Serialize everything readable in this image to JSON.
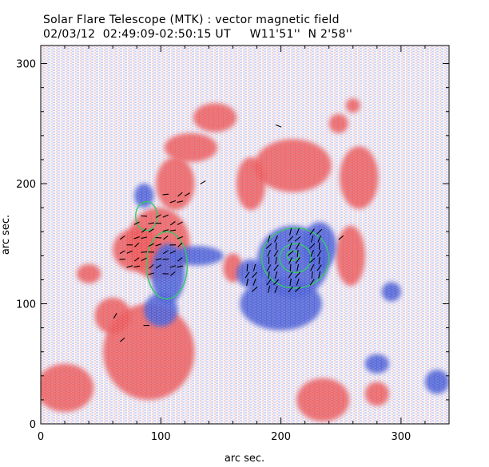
{
  "title": {
    "line1": "Solar Flare Telescope (MTK) : vector magnetic field",
    "line2": "02/03/12  02:49:09-02:50:15 UT     W11'51''  N 2'58''"
  },
  "chart_data": {
    "type": "heatmap",
    "description_of_marks": "longitudinal magnetogram (red = positive, blue = negative) with transverse field vectors (black dashes) and green contours",
    "xlabel": "arc sec.",
    "ylabel": "arc sec.",
    "xlim": [
      0,
      340
    ],
    "ylim": [
      0,
      315
    ],
    "xticks": [
      0,
      100,
      200,
      300
    ],
    "yticks": [
      0,
      100,
      200,
      300
    ],
    "x_tick_labels": [
      "0",
      "100",
      "200",
      "300"
    ],
    "y_tick_labels": [
      "0",
      "100",
      "200",
      "300"
    ],
    "colors": {
      "positive": "#ee5555",
      "negative": "#4a5ed8",
      "contour": "#33cc66",
      "vector": "#000000"
    },
    "positive_regions": [
      {
        "x": 98,
        "y": 150,
        "rx": 26,
        "ry": 30
      },
      {
        "x": 80,
        "y": 145,
        "rx": 20,
        "ry": 18
      },
      {
        "x": 112,
        "y": 200,
        "rx": 16,
        "ry": 22
      },
      {
        "x": 90,
        "y": 60,
        "rx": 38,
        "ry": 40
      },
      {
        "x": 125,
        "y": 230,
        "rx": 22,
        "ry": 12
      },
      {
        "x": 145,
        "y": 255,
        "rx": 18,
        "ry": 12
      },
      {
        "x": 210,
        "y": 215,
        "rx": 32,
        "ry": 22
      },
      {
        "x": 265,
        "y": 205,
        "rx": 16,
        "ry": 26
      },
      {
        "x": 175,
        "y": 200,
        "rx": 12,
        "ry": 22
      },
      {
        "x": 258,
        "y": 140,
        "rx": 12,
        "ry": 25
      },
      {
        "x": 20,
        "y": 30,
        "rx": 24,
        "ry": 20
      },
      {
        "x": 235,
        "y": 20,
        "rx": 22,
        "ry": 18
      },
      {
        "x": 248,
        "y": 250,
        "rx": 8,
        "ry": 8
      },
      {
        "x": 260,
        "y": 265,
        "rx": 6,
        "ry": 6
      },
      {
        "x": 160,
        "y": 130,
        "rx": 8,
        "ry": 12
      },
      {
        "x": 60,
        "y": 90,
        "rx": 15,
        "ry": 15
      },
      {
        "x": 40,
        "y": 125,
        "rx": 10,
        "ry": 8
      },
      {
        "x": 280,
        "y": 25,
        "rx": 10,
        "ry": 10
      }
    ],
    "negative_regions": [
      {
        "x": 210,
        "y": 135,
        "rx": 30,
        "ry": 30
      },
      {
        "x": 200,
        "y": 100,
        "rx": 34,
        "ry": 22
      },
      {
        "x": 232,
        "y": 148,
        "rx": 14,
        "ry": 20
      },
      {
        "x": 175,
        "y": 125,
        "rx": 12,
        "ry": 12
      },
      {
        "x": 106,
        "y": 125,
        "rx": 14,
        "ry": 25
      },
      {
        "x": 100,
        "y": 95,
        "rx": 14,
        "ry": 14
      },
      {
        "x": 130,
        "y": 140,
        "rx": 22,
        "ry": 8
      },
      {
        "x": 86,
        "y": 190,
        "rx": 8,
        "ry": 10
      },
      {
        "x": 280,
        "y": 50,
        "rx": 10,
        "ry": 8
      },
      {
        "x": 292,
        "y": 110,
        "rx": 8,
        "ry": 8
      },
      {
        "x": 330,
        "y": 35,
        "rx": 10,
        "ry": 10
      }
    ],
    "contours": [
      {
        "x": 88,
        "y": 173,
        "rx": 9,
        "ry": 12
      },
      {
        "x": 105,
        "y": 132,
        "rx": 17,
        "ry": 28
      },
      {
        "x": 212,
        "y": 138,
        "rx": 28,
        "ry": 25
      },
      {
        "x": 212,
        "y": 138,
        "rx": 13,
        "ry": 12
      },
      {
        "x": 210,
        "y": 140,
        "rx": 5,
        "ry": 4
      }
    ],
    "vector_fields": [
      {
        "x0": 50,
        "x1": 130,
        "y0": 125,
        "y1": 195,
        "step": 6,
        "angle": 20,
        "len": 5
      },
      {
        "x0": 172,
        "x1": 242,
        "y0": 112,
        "y1": 165,
        "step": 6,
        "angle": 65,
        "len": 6
      }
    ],
    "isolated_vectors": [
      {
        "x": 135,
        "y": 201,
        "angle": 30
      },
      {
        "x": 198,
        "y": 248,
        "angle": -20
      },
      {
        "x": 88,
        "y": 82,
        "angle": 0
      },
      {
        "x": 68,
        "y": 70,
        "angle": 40
      },
      {
        "x": 62,
        "y": 90,
        "angle": 60
      },
      {
        "x": 250,
        "y": 155,
        "angle": 40
      }
    ]
  }
}
